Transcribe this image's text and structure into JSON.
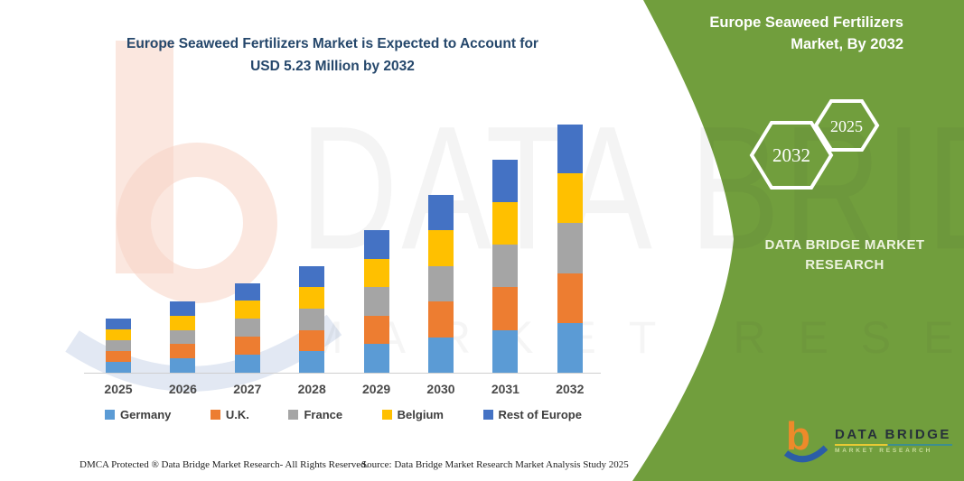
{
  "title": {
    "line1": "Europe Seaweed Fertilizers Market is Expected to Account for",
    "line2": "USD 5.23 Million by 2032"
  },
  "panel": {
    "background_color": "#719E3D",
    "heading_line1": "Europe Seaweed Fertilizers",
    "heading_line2": "Market, By 2032",
    "hexagon_back_year": "2032",
    "hexagon_front_year": "2025",
    "brand_line1": "DATA BRIDGE MARKET",
    "brand_line2": "RESEARCH"
  },
  "logo": {
    "name_line": "DATA BRIDGE",
    "sub_line": "MARKET RESEARCH"
  },
  "watermark": {
    "big_text": "DATA BRIDGE",
    "sub_text": "MARKET RESEARCH"
  },
  "footer": {
    "left": "DMCA Protected ® Data Bridge Market Research- All Rights Reserved.",
    "right": "Source: Data Bridge Market Research  Market Analysis Study 2025"
  },
  "chart_data": {
    "type": "bar",
    "stacked": true,
    "title": "Europe Seaweed Fertilizers Market is Expected to Account for USD 5.23 Million by 2032",
    "units": "USD Million",
    "xlabel": "",
    "ylabel": "",
    "value_axis_visible": false,
    "grid": false,
    "legend_position": "bottom",
    "ylim": [
      0,
      5.5
    ],
    "categories": [
      "2025",
      "2026",
      "2027",
      "2028",
      "2029",
      "2030",
      "2031",
      "2032"
    ],
    "series": [
      {
        "name": "Germany",
        "color": "#5B9BD5",
        "values": [
          0.23,
          0.3,
          0.38,
          0.45,
          0.6,
          0.75,
          0.9,
          1.05
        ]
      },
      {
        "name": "U.K.",
        "color": "#ED7D31",
        "values": [
          0.23,
          0.3,
          0.38,
          0.45,
          0.6,
          0.75,
          0.9,
          1.05
        ]
      },
      {
        "name": "France",
        "color": "#A5A5A5",
        "values": [
          0.23,
          0.3,
          0.38,
          0.45,
          0.6,
          0.75,
          0.9,
          1.05
        ]
      },
      {
        "name": "Belgium",
        "color": "#FFC000",
        "values": [
          0.23,
          0.3,
          0.38,
          0.45,
          0.6,
          0.75,
          0.9,
          1.05
        ]
      },
      {
        "name": "Rest of Europe",
        "color": "#4472C4",
        "values": [
          0.23,
          0.3,
          0.37,
          0.45,
          0.6,
          0.74,
          0.89,
          1.03
        ]
      }
    ],
    "totals_by_year": [
      1.15,
      1.5,
      1.89,
      2.25,
      3.0,
      3.74,
      4.49,
      5.23
    ],
    "highlight": {
      "year": "2032",
      "value_usd_million": 5.23
    }
  }
}
